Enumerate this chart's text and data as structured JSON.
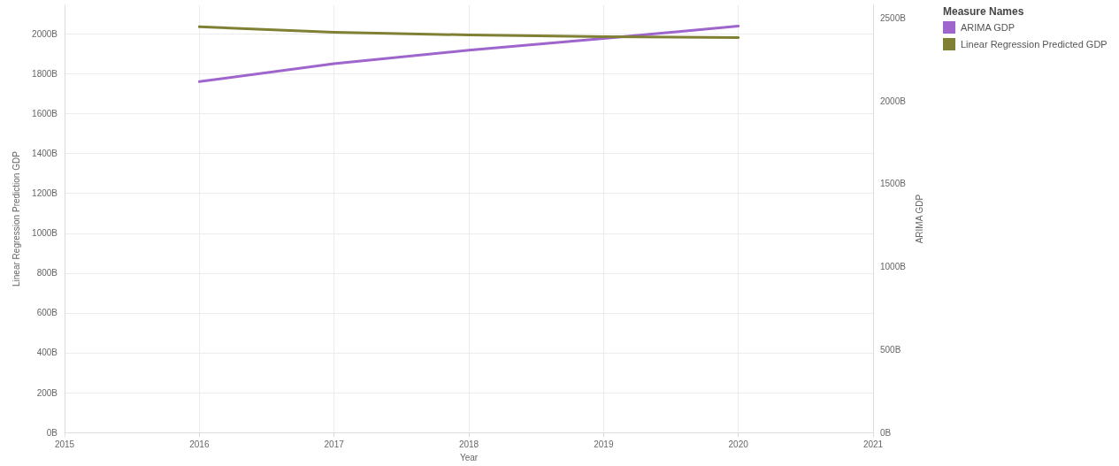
{
  "chart_data": {
    "type": "line",
    "xlabel": "Year",
    "ylabel": "Linear Regression Prediction GDP",
    "y2label": "ARIMA GDP",
    "legend_title": "Measure Names",
    "x": [
      2016,
      2017,
      2018,
      2019,
      2020
    ],
    "series": [
      {
        "name": "ARIMA GDP",
        "color": "#9e66cc",
        "axis": "y2",
        "values": [
          2116,
          2224,
          2305,
          2376,
          2451
        ]
      },
      {
        "name": "Linear Regression Predicted GDP",
        "color": "#7f8034",
        "values": [
          2036,
          2009,
          1995,
          1986,
          1982
        ]
      }
    ],
    "xlim": [
      2015,
      2021
    ],
    "xticks": [
      2015,
      2016,
      2017,
      2018,
      2019,
      2020,
      2021
    ],
    "ylim": [
      0,
      2144
    ],
    "yticks": [
      {
        "value": 0,
        "label": "0B"
      },
      {
        "value": 200,
        "label": "200B"
      },
      {
        "value": 400,
        "label": "400B"
      },
      {
        "value": 600,
        "label": "600B"
      },
      {
        "value": 800,
        "label": "800B"
      },
      {
        "value": 1000,
        "label": "1000B"
      },
      {
        "value": 1200,
        "label": "1200B"
      },
      {
        "value": 1400,
        "label": "1400B"
      },
      {
        "value": 1600,
        "label": "1600B"
      },
      {
        "value": 1800,
        "label": "1800B"
      },
      {
        "value": 2000,
        "label": "2000B"
      }
    ],
    "y2lim": [
      0,
      2576
    ],
    "y2ticks": [
      {
        "value": 0,
        "label": "0B"
      },
      {
        "value": 500,
        "label": "500B"
      },
      {
        "value": 1000,
        "label": "1000B"
      },
      {
        "value": 1500,
        "label": "1500B"
      },
      {
        "value": 2000,
        "label": "2000B"
      },
      {
        "value": 2500,
        "label": "2500B"
      }
    ],
    "grid": true,
    "legend": "top right",
    "marker": "none",
    "line_style": "solid"
  }
}
